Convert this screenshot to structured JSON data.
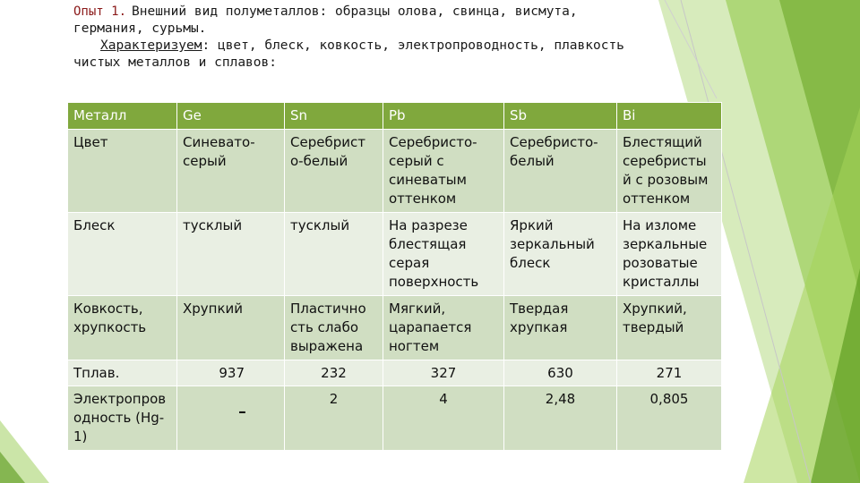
{
  "intro": {
    "label": "Опыт 1.",
    "line1": "Внешний вид полуметаллов: образцы олова, свинца, висмута,",
    "line2": "германия, сурьмы.",
    "characterize": "Характеризуем",
    "line3_rest": ": цвет, блеск, ковкость, электропроводность, плавкость",
    "line4": "чистых металлов и сплавов:"
  },
  "table": {
    "headers": [
      "Металл",
      "Ge",
      "Sn",
      "Pb",
      "Sb",
      "Bi"
    ],
    "rows": [
      [
        "Цвет",
        "Синевато-серый",
        "Серебрист о-белый",
        "Серебристо-серый с синеватым оттенком",
        "Серебристо-белый",
        "Блестящий серебристы й с розовым оттенком"
      ],
      [
        "Блеск",
        "тусклый",
        "тусклый",
        "На разрезе блестящая серая поверхность",
        "Яркий зеркальный блеск",
        "На изломе зеркальные розоватые кристаллы"
      ],
      [
        "Ковкость, хрупкость",
        "Хрупкий",
        "Пластично сть слабо выражена",
        "Мягкий, царапается ногтем",
        "Твердая хрупкая",
        "Хрупкий, твердый"
      ],
      [
        "Тплав.",
        "937",
        "232",
        "327",
        "630",
        "271"
      ],
      [
        "Электропров одность (Hg-1)",
        "-",
        "2",
        "4",
        "2,48",
        "0,805"
      ]
    ]
  },
  "colors": {
    "header_bg": "#80a83d",
    "row_odd": "#d0dec2",
    "row_even": "#e9efe3",
    "decor_green": "#8cc63f"
  }
}
